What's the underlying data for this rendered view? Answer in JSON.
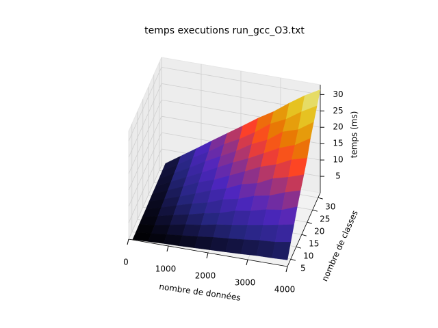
{
  "chart_data": {
    "type": "surface",
    "title": "temps executions run_gcc_O3.txt",
    "xlabel": "nombre de données",
    "ylabel": "nombre de classes",
    "zlabel": "temps (ms)",
    "colormap": "CMRmap",
    "x": [
      100,
      490,
      880,
      1270,
      1660,
      2050,
      2440,
      2830,
      3220,
      3610,
      4000
    ],
    "y": [
      2,
      5,
      8,
      11,
      14,
      17,
      20,
      23,
      26,
      29,
      32
    ],
    "z": [
      [
        0.1,
        0.3,
        0.5,
        0.6,
        0.8,
        1.0,
        1.2,
        1.4,
        1.7,
        1.8,
        2.0
      ],
      [
        0.1,
        0.5,
        1.0,
        1.5,
        2.0,
        2.6,
        3.0,
        3.5,
        4.1,
        4.4,
        5.2
      ],
      [
        0.2,
        0.8,
        1.7,
        2.6,
        3.3,
        4.2,
        4.9,
        5.7,
        6.5,
        7.4,
        8.3
      ],
      [
        0.3,
        1.3,
        2.4,
        3.4,
        4.6,
        5.5,
        7.0,
        7.8,
        9.0,
        9.7,
        11.5
      ],
      [
        0.3,
        1.7,
        3.1,
        4.5,
        5.6,
        7.4,
        8.4,
        10.1,
        11.0,
        12.8,
        14.2
      ],
      [
        0.4,
        2.0,
        3.6,
        5.3,
        7.1,
        8.5,
        10.6,
        11.7,
        14.0,
        15.2,
        16.8
      ],
      [
        0.5,
        2.4,
        4.4,
        6.5,
        8.1,
        10.2,
        12.3,
        14.5,
        16.0,
        18.3,
        19.6
      ],
      [
        0.5,
        2.8,
        5.0,
        7.2,
        9.6,
        11.9,
        14.0,
        16.4,
        18.8,
        20.5,
        23.4
      ],
      [
        0.6,
        3.2,
        5.7,
        8.4,
        10.8,
        13.2,
        16.1,
        18.2,
        21.5,
        23.0,
        26.1
      ],
      [
        0.7,
        3.5,
        6.5,
        9.1,
        12.2,
        14.6,
        17.5,
        20.9,
        23.1,
        26.2,
        28.8
      ],
      [
        0.8,
        3.9,
        7.0,
        10.2,
        13.3,
        16.4,
        19.6,
        22.4,
        25.8,
        28.9,
        31.5
      ]
    ],
    "xlim": [
      0,
      4000
    ],
    "ylim": [
      2,
      32
    ],
    "zlim": [
      0,
      33
    ],
    "xticks": [
      0,
      1000,
      2000,
      3000,
      4000
    ],
    "yticks": [
      5,
      10,
      15,
      20,
      25,
      30
    ],
    "zticks": [
      5,
      10,
      15,
      20,
      25,
      30
    ],
    "grid": true
  }
}
